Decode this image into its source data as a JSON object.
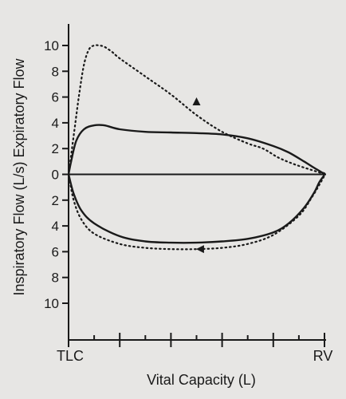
{
  "chart_data": {
    "type": "line",
    "xlabel": "Vital Capacity (L)",
    "ylabel": "Inspiratory Flow (L/s) Expiratory Flow",
    "x_end_labels": [
      "TLC",
      "RV"
    ],
    "xlim": [
      0,
      1
    ],
    "ylim": [
      -10,
      10
    ],
    "y_ticks": [
      {
        "value": 10,
        "label": "10"
      },
      {
        "value": 8,
        "label": "8"
      },
      {
        "value": 6,
        "label": "6"
      },
      {
        "value": 4,
        "label": "4"
      },
      {
        "value": 2,
        "label": "2"
      },
      {
        "value": 0,
        "label": "0"
      },
      {
        "value": -2,
        "label": "2"
      },
      {
        "value": -4,
        "label": "4"
      },
      {
        "value": -6,
        "label": "6"
      },
      {
        "value": -8,
        "label": "8"
      },
      {
        "value": -10,
        "label": "10"
      }
    ],
    "x_ticks": [
      0,
      0.2,
      0.4,
      0.6,
      0.8,
      1.0
    ],
    "x_minor_ticks": [
      0.1,
      0.3,
      0.5,
      0.7,
      0.9
    ],
    "grid": false,
    "series": [
      {
        "style": "solid",
        "color": "#1a1a1a",
        "x": [
          0.0,
          0.01,
          0.03,
          0.06,
          0.1,
          0.14,
          0.2,
          0.3,
          0.4,
          0.5,
          0.6,
          0.7,
          0.8,
          0.86,
          0.92,
          0.96,
          0.99,
          1.0,
          0.98,
          0.96,
          0.92,
          0.86,
          0.8,
          0.7,
          0.6,
          0.5,
          0.4,
          0.3,
          0.2,
          0.1,
          0.05,
          0.02,
          0.0
        ],
        "y": [
          0.0,
          1.0,
          2.6,
          3.5,
          3.8,
          3.8,
          3.5,
          3.3,
          3.25,
          3.2,
          3.1,
          2.8,
          2.2,
          1.7,
          1.0,
          0.5,
          0.15,
          0.0,
          -0.6,
          -1.4,
          -2.6,
          -3.8,
          -4.5,
          -5.0,
          -5.2,
          -5.3,
          -5.3,
          -5.2,
          -4.8,
          -3.8,
          -2.8,
          -1.5,
          0.0
        ]
      },
      {
        "style": "dotted",
        "color": "#1a1a1a",
        "x": [
          0.0,
          0.02,
          0.04,
          0.06,
          0.08,
          0.1,
          0.12,
          0.14,
          0.17,
          0.2,
          0.3,
          0.4,
          0.5,
          0.6,
          0.7,
          0.76,
          0.82,
          0.88,
          0.94,
          0.98,
          1.0,
          0.98,
          0.95,
          0.9,
          0.8,
          0.7,
          0.6,
          0.5,
          0.4,
          0.3,
          0.2,
          0.1,
          0.05,
          0.02,
          0.0
        ],
        "y": [
          0.0,
          3.0,
          6.0,
          8.5,
          9.7,
          10.0,
          10.0,
          9.9,
          9.5,
          9.0,
          7.6,
          6.2,
          4.6,
          3.3,
          2.4,
          2.0,
          1.3,
          0.8,
          0.4,
          0.15,
          0.0,
          -0.8,
          -1.8,
          -3.2,
          -4.7,
          -5.4,
          -5.7,
          -5.8,
          -5.8,
          -5.7,
          -5.4,
          -4.6,
          -3.5,
          -2.0,
          0.0
        ]
      }
    ],
    "arrows": [
      {
        "series": 1,
        "x": 0.5,
        "y": 5.6,
        "direction": "up"
      },
      {
        "series": 1,
        "x": 0.52,
        "y": -5.8,
        "direction": "left"
      }
    ]
  }
}
